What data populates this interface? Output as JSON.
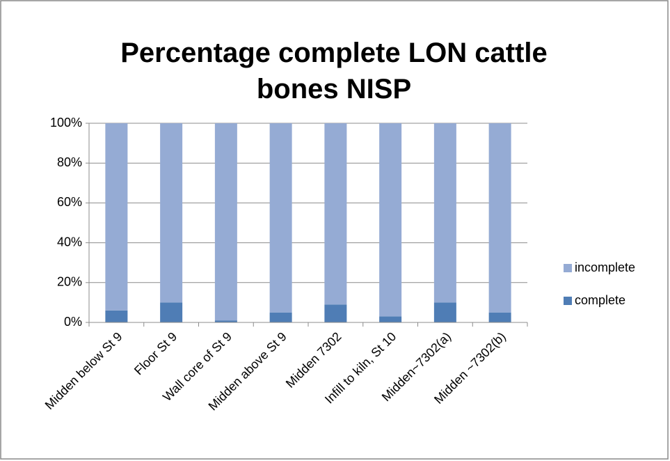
{
  "chart_data": {
    "type": "stacked_bar",
    "title": "Percentage complete LON cattle bones NISP",
    "categories": [
      "Midden below St 9",
      "Floor St 9",
      "Wall core of St 9",
      "Midden above St 9",
      "Midden 7302",
      "Infill to kiln, St 10",
      "Midden~7302(a)",
      "Midden ~7302(b)"
    ],
    "series": [
      {
        "name": "complete",
        "color": "#4f7db5",
        "values": [
          6,
          10,
          1,
          5,
          9,
          3,
          10,
          5
        ]
      },
      {
        "name": "incomplete",
        "color": "#95abd4",
        "values": [
          94,
          90,
          99,
          95,
          91,
          97,
          90,
          95
        ]
      }
    ],
    "ylim": [
      0,
      100
    ],
    "yticks": [
      {
        "value": 0,
        "label": "0%"
      },
      {
        "value": 20,
        "label": "20%"
      },
      {
        "value": 40,
        "label": "40%"
      },
      {
        "value": 60,
        "label": "60%"
      },
      {
        "value": 80,
        "label": "80%"
      },
      {
        "value": 100,
        "label": "100%"
      }
    ],
    "grid": true,
    "legend": "right"
  }
}
